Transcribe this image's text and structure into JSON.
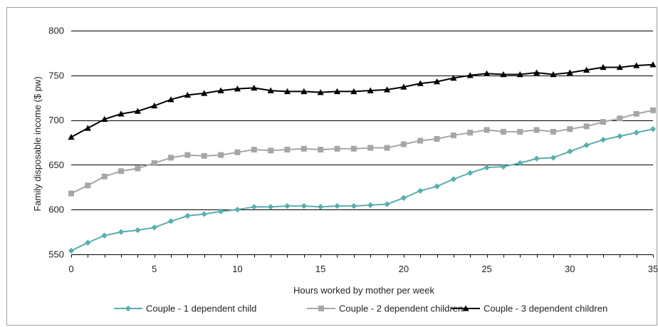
{
  "chart_data": {
    "type": "line",
    "title": "",
    "xlabel": "Hours worked by mother per week",
    "ylabel": "Family disposable income ($ pw)",
    "xlim": [
      0,
      35
    ],
    "ylim": [
      550,
      800
    ],
    "x_ticks": [
      0,
      5,
      10,
      15,
      20,
      25,
      30,
      35
    ],
    "y_ticks": [
      550,
      600,
      650,
      700,
      750,
      800
    ],
    "grid": "horizontal",
    "legend_position": "bottom",
    "x": [
      0,
      1,
      2,
      3,
      4,
      5,
      6,
      7,
      8,
      9,
      10,
      11,
      12,
      13,
      14,
      15,
      16,
      17,
      18,
      19,
      20,
      21,
      22,
      23,
      24,
      25,
      26,
      27,
      28,
      29,
      30,
      31,
      32,
      33,
      34,
      35
    ],
    "series": [
      {
        "name": "Couple - 1 dependent child",
        "color": "#5aaeae",
        "marker": "diamond",
        "values": [
          554,
          563,
          571,
          575,
          577,
          580,
          587,
          593,
          595,
          598,
          600,
          603,
          603,
          604,
          604,
          603,
          604,
          604,
          605,
          606,
          613,
          621,
          626,
          634,
          641,
          647,
          648,
          652,
          657,
          658,
          665,
          672,
          678,
          682,
          686,
          690
        ]
      },
      {
        "name": "Couple - 2 dependent children",
        "color": "#a6a6a6",
        "marker": "square",
        "values": [
          618,
          627,
          637,
          643,
          646,
          652,
          658,
          661,
          660,
          661,
          664,
          667,
          666,
          667,
          668,
          667,
          668,
          668,
          669,
          669,
          673,
          677,
          679,
          683,
          686,
          689,
          687,
          687,
          689,
          687,
          690,
          693,
          698,
          702,
          707,
          711
        ]
      },
      {
        "name": "Couple - 3 dependent children",
        "color": "#000000",
        "marker": "triangle",
        "values": [
          681,
          691,
          701,
          707,
          710,
          716,
          723,
          728,
          730,
          733,
          735,
          736,
          733,
          732,
          732,
          731,
          732,
          732,
          733,
          734,
          737,
          741,
          743,
          747,
          750,
          752,
          751,
          751,
          753,
          751,
          753,
          756,
          759,
          759,
          761,
          762
        ]
      }
    ]
  }
}
